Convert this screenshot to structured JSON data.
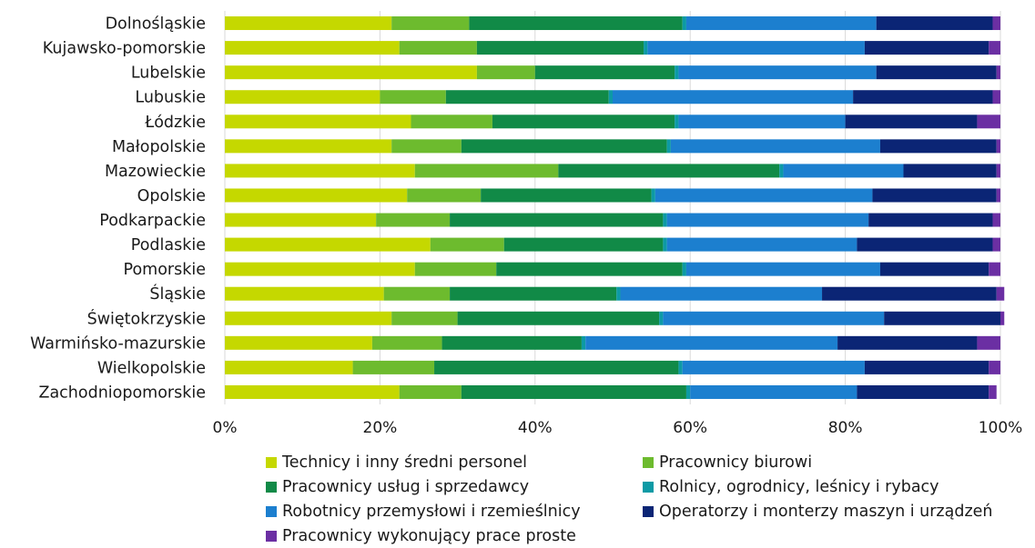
{
  "chart_data": {
    "type": "bar",
    "orientation": "horizontal",
    "stacked": "percent",
    "categories": [
      "Dolnośląskie",
      "Kujawsko-pomorskie",
      "Lubelskie",
      "Lubuskie",
      "Łódzkie",
      "Małopolskie",
      "Mazowieckie",
      "Opolskie",
      "Podkarpackie",
      "Podlaskie",
      "Pomorskie",
      "Śląskie",
      "Świętokrzyskie",
      "Warmińsko-mazurskie",
      "Wielkopolskie",
      "Zachodniopomorskie"
    ],
    "series": [
      {
        "name": "Technicy i inny średni personel",
        "color": "#c5d800",
        "values": [
          21.5,
          22.5,
          32.5,
          20.0,
          24.0,
          21.5,
          24.5,
          23.5,
          19.5,
          26.5,
          24.5,
          20.5,
          21.5,
          19.0,
          16.5,
          22.5
        ]
      },
      {
        "name": "Pracownicy biurowi",
        "color": "#6dbb2e",
        "values": [
          10.0,
          10.0,
          7.5,
          8.5,
          10.5,
          9.0,
          18.5,
          9.5,
          9.5,
          9.5,
          10.5,
          8.5,
          8.5,
          9.0,
          10.5,
          8.0
        ]
      },
      {
        "name": "Pracownicy usług i sprzedawcy",
        "color": "#118a47",
        "values": [
          27.5,
          21.5,
          18.0,
          21.0,
          23.5,
          26.5,
          28.5,
          22.0,
          27.5,
          20.5,
          24.0,
          21.5,
          26.0,
          18.0,
          31.5,
          29.0
        ]
      },
      {
        "name": "Rolnicy, ogrodnicy, leśnicy i rybacy",
        "color": "#0d9aa5",
        "values": [
          0.5,
          0.5,
          0.5,
          0.5,
          0.5,
          0.5,
          0.5,
          0.5,
          0.5,
          0.5,
          0.5,
          0.5,
          0.5,
          0.5,
          0.5,
          0.5
        ]
      },
      {
        "name": "Robotnicy przemysłowi i rzemieślnicy",
        "color": "#1c7fcf",
        "values": [
          24.5,
          28.0,
          25.5,
          31.0,
          21.5,
          27.0,
          15.5,
          28.0,
          26.0,
          24.5,
          25.0,
          26.0,
          28.5,
          32.5,
          23.5,
          21.5
        ]
      },
      {
        "name": "Operatorzy i monterzy maszyn i urządzeń",
        "color": "#0b2575",
        "values": [
          15.0,
          16.0,
          15.5,
          18.0,
          17.0,
          15.0,
          12.0,
          16.0,
          16.0,
          17.5,
          14.0,
          22.5,
          15.0,
          18.0,
          16.0,
          17.0
        ]
      },
      {
        "name": "Pracownicy wykonujący prace proste",
        "color": "#6b2fa3",
        "values": [
          1.0,
          1.5,
          0.5,
          1.0,
          3.0,
          0.5,
          0.5,
          0.5,
          1.0,
          1.0,
          1.5,
          1.0,
          0.5,
          3.0,
          1.5,
          1.0
        ]
      }
    ],
    "xlim": [
      0,
      100
    ],
    "x_ticks": [
      "0%",
      "20%",
      "40%",
      "60%",
      "80%",
      "100%"
    ],
    "legend_position": "bottom",
    "grid": true
  }
}
